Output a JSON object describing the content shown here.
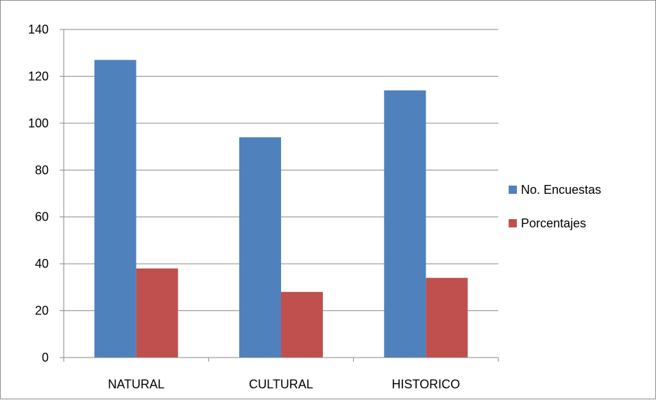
{
  "chart_data": {
    "type": "bar",
    "title": "",
    "xlabel": "",
    "ylabel": "",
    "categories": [
      "NATURAL",
      "CULTURAL",
      "HISTORICO"
    ],
    "series": [
      {
        "name": "No. Encuestas",
        "values": [
          127,
          94,
          114
        ],
        "color": "#4f81bd"
      },
      {
        "name": "Porcentajes",
        "values": [
          38,
          28,
          34
        ],
        "color": "#c0504d"
      }
    ],
    "ylim": [
      0,
      140
    ],
    "yticks": [
      0,
      20,
      40,
      60,
      80,
      100,
      120,
      140
    ],
    "grid": true,
    "legend_position": "right"
  }
}
